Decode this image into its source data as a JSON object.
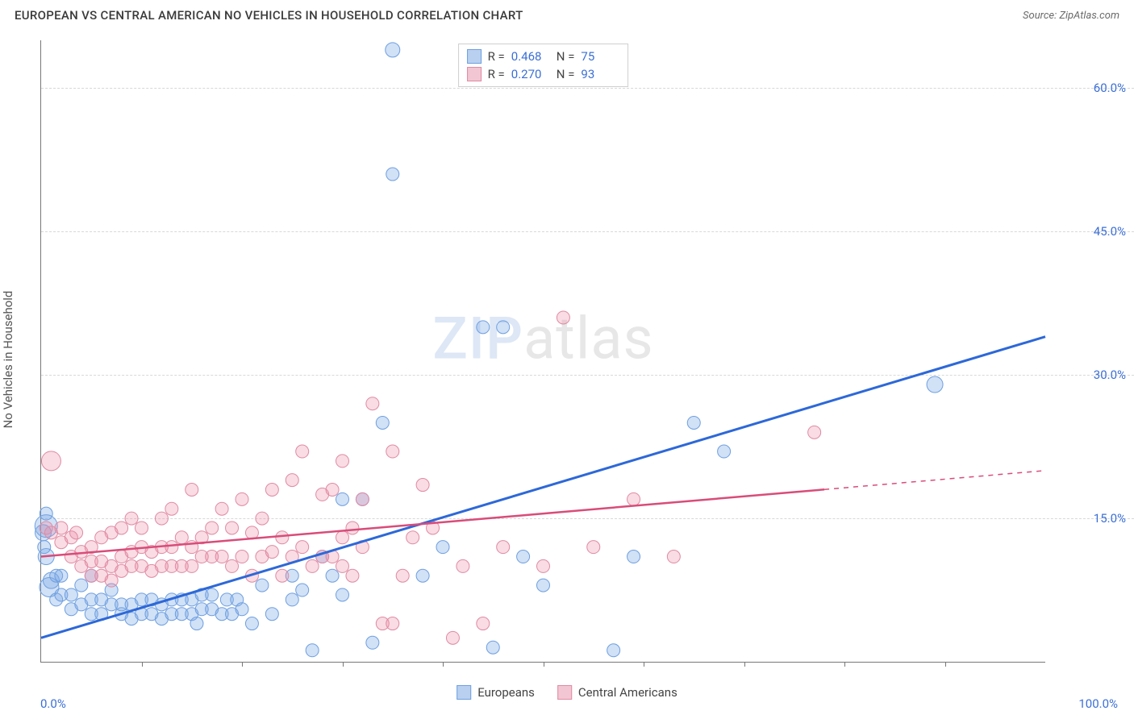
{
  "header": {
    "title": "EUROPEAN VS CENTRAL AMERICAN NO VEHICLES IN HOUSEHOLD CORRELATION CHART",
    "source_prefix": "Source: ",
    "source_name": "ZipAtlas.com"
  },
  "watermark": {
    "part1": "ZIP",
    "part2": "atlas"
  },
  "chart": {
    "type": "scatter-with-regression",
    "xlim": [
      0,
      100
    ],
    "ylim": [
      0,
      65
    ],
    "x_axis_label_left": "0.0%",
    "x_axis_label_right": "100.0%",
    "y_axis_title": "No Vehicles in Household",
    "y_ticks": [
      {
        "v": 15,
        "label": "15.0%"
      },
      {
        "v": 30,
        "label": "30.0%"
      },
      {
        "v": 45,
        "label": "45.0%"
      },
      {
        "v": 60,
        "label": "60.0%"
      }
    ],
    "x_tick_positions": [
      10,
      20,
      30,
      40,
      50,
      60,
      70,
      80,
      90
    ],
    "grid_color": "#d8d8d8",
    "axis_color": "#777777",
    "background_color": "#ffffff",
    "tick_label_color": "#3b6fd6",
    "series": [
      {
        "key": "europeans",
        "label": "Europeans",
        "color_fill": "rgba(122,168,228,0.35)",
        "color_stroke": "#6e9fe0",
        "line_color": "#2d68d8",
        "line_width": 3,
        "swatch_fill": "#b9d0f0",
        "swatch_stroke": "#6e9fe0",
        "marker_radius": 8,
        "stats": {
          "R": "0.468",
          "N": "75"
        },
        "regression": {
          "x1": 0,
          "y1": 2.5,
          "x2": 100,
          "y2": 34.0,
          "solid_until_x": 100
        },
        "points": [
          [
            0.5,
            14.2,
            14
          ],
          [
            0.5,
            11.0,
            10
          ],
          [
            0.8,
            7.8,
            12
          ],
          [
            1.0,
            8.5,
            10
          ],
          [
            1.5,
            6.5,
            8
          ],
          [
            1.5,
            9.0,
            8
          ],
          [
            0.2,
            13.5,
            10
          ],
          [
            0.5,
            15.5,
            8
          ],
          [
            0.3,
            12.0,
            8
          ],
          [
            2,
            7,
            8
          ],
          [
            2,
            9,
            8
          ],
          [
            3,
            5.5,
            8
          ],
          [
            3,
            7,
            8
          ],
          [
            4,
            6,
            8
          ],
          [
            4,
            8,
            8
          ],
          [
            5,
            5,
            8
          ],
          [
            5,
            6.5,
            8
          ],
          [
            5,
            9,
            8
          ],
          [
            6,
            5,
            8
          ],
          [
            6,
            6.5,
            8
          ],
          [
            7,
            6,
            8
          ],
          [
            7,
            7.5,
            8
          ],
          [
            8,
            5,
            8
          ],
          [
            8,
            6,
            8
          ],
          [
            9,
            4.5,
            8
          ],
          [
            9,
            6,
            8
          ],
          [
            10,
            5,
            8
          ],
          [
            10,
            6.5,
            8
          ],
          [
            11,
            5,
            8
          ],
          [
            11,
            6.5,
            8
          ],
          [
            12,
            4.5,
            8
          ],
          [
            12,
            6,
            8
          ],
          [
            13,
            5,
            8
          ],
          [
            13,
            6.5,
            8
          ],
          [
            14,
            5,
            8
          ],
          [
            14,
            6.5,
            8
          ],
          [
            15,
            5,
            8
          ],
          [
            15,
            6.5,
            8
          ],
          [
            15.5,
            4,
            8
          ],
          [
            16,
            5.5,
            8
          ],
          [
            16,
            7,
            8
          ],
          [
            17,
            5.5,
            8
          ],
          [
            17,
            7,
            8
          ],
          [
            18,
            5,
            8
          ],
          [
            18.5,
            6.5,
            8
          ],
          [
            19,
            5,
            8
          ],
          [
            19.5,
            6.5,
            8
          ],
          [
            20,
            5.5,
            8
          ],
          [
            21,
            4,
            8
          ],
          [
            22,
            8,
            8
          ],
          [
            23,
            5,
            8
          ],
          [
            25,
            6.5,
            8
          ],
          [
            25,
            9,
            8
          ],
          [
            26,
            7.5,
            8
          ],
          [
            27,
            1.2,
            8
          ],
          [
            28,
            11,
            8
          ],
          [
            29,
            9,
            8
          ],
          [
            30,
            7,
            8
          ],
          [
            30,
            17,
            8
          ],
          [
            32,
            17,
            8
          ],
          [
            33,
            2,
            8
          ],
          [
            34,
            25,
            8
          ],
          [
            35,
            51,
            8
          ],
          [
            35,
            64,
            9
          ],
          [
            38,
            9,
            8
          ],
          [
            40,
            12,
            8
          ],
          [
            44,
            35,
            8
          ],
          [
            45,
            1.5,
            8
          ],
          [
            46,
            35,
            8
          ],
          [
            48,
            11,
            8
          ],
          [
            50,
            8,
            8
          ],
          [
            57,
            1.2,
            8
          ],
          [
            59,
            11,
            8
          ],
          [
            65,
            25,
            8
          ],
          [
            68,
            22,
            8
          ],
          [
            89,
            29,
            10
          ]
        ]
      },
      {
        "key": "central_americans",
        "label": "Central Americans",
        "color_fill": "rgba(235,140,165,0.30)",
        "color_stroke": "#e08aa3",
        "line_color": "#d94c7a",
        "line_width": 2.5,
        "swatch_fill": "#f3c6d3",
        "swatch_stroke": "#e08aa3",
        "marker_radius": 8,
        "stats": {
          "R": "0.270",
          "N": "93"
        },
        "regression": {
          "x1": 0,
          "y1": 11.0,
          "x2": 100,
          "y2": 20.0,
          "solid_until_x": 78
        },
        "points": [
          [
            1,
            21,
            12
          ],
          [
            0.5,
            14,
            8
          ],
          [
            1,
            13.5,
            8
          ],
          [
            2,
            14,
            8
          ],
          [
            2,
            12.5,
            8
          ],
          [
            3,
            13,
            8
          ],
          [
            3,
            11,
            8
          ],
          [
            3.5,
            13.5,
            8
          ],
          [
            4,
            10,
            8
          ],
          [
            4,
            11.5,
            8
          ],
          [
            5,
            9,
            8
          ],
          [
            5,
            10.5,
            8
          ],
          [
            5,
            12,
            8
          ],
          [
            6,
            9,
            8
          ],
          [
            6,
            10.5,
            8
          ],
          [
            6,
            13,
            8
          ],
          [
            7,
            8.5,
            8
          ],
          [
            7,
            10,
            8
          ],
          [
            7,
            13.5,
            8
          ],
          [
            8,
            9.5,
            8
          ],
          [
            8,
            11,
            8
          ],
          [
            8,
            14,
            8
          ],
          [
            9,
            10,
            8
          ],
          [
            9,
            11.5,
            8
          ],
          [
            9,
            15,
            8
          ],
          [
            10,
            10,
            8
          ],
          [
            10,
            12,
            8
          ],
          [
            10,
            14,
            8
          ],
          [
            11,
            9.5,
            8
          ],
          [
            11,
            11.5,
            8
          ],
          [
            12,
            10,
            8
          ],
          [
            12,
            12,
            8
          ],
          [
            12,
            15,
            8
          ],
          [
            13,
            10,
            8
          ],
          [
            13,
            12,
            8
          ],
          [
            13,
            16,
            8
          ],
          [
            14,
            10,
            8
          ],
          [
            14,
            13,
            8
          ],
          [
            15,
            10,
            8
          ],
          [
            15,
            12,
            8
          ],
          [
            15,
            18,
            8
          ],
          [
            16,
            11,
            8
          ],
          [
            16,
            13,
            8
          ],
          [
            17,
            11,
            8
          ],
          [
            17,
            14,
            8
          ],
          [
            18,
            11,
            8
          ],
          [
            18,
            16,
            8
          ],
          [
            19,
            10,
            8
          ],
          [
            19,
            14,
            8
          ],
          [
            20,
            11,
            8
          ],
          [
            20,
            17,
            8
          ],
          [
            21,
            9,
            8
          ],
          [
            21,
            13.5,
            8
          ],
          [
            22,
            11,
            8
          ],
          [
            22,
            15,
            8
          ],
          [
            23,
            11.5,
            8
          ],
          [
            23,
            18,
            8
          ],
          [
            24,
            9,
            8
          ],
          [
            24,
            13,
            8
          ],
          [
            25,
            11,
            8
          ],
          [
            25,
            19,
            8
          ],
          [
            26,
            12,
            8
          ],
          [
            26,
            22,
            8
          ],
          [
            27,
            10,
            8
          ],
          [
            28,
            11,
            8
          ],
          [
            28,
            17.5,
            8
          ],
          [
            29,
            11,
            8
          ],
          [
            29,
            18,
            8
          ],
          [
            30,
            10,
            8
          ],
          [
            30,
            13,
            8
          ],
          [
            30,
            21,
            8
          ],
          [
            31,
            9,
            8
          ],
          [
            31,
            14,
            8
          ],
          [
            32,
            12,
            8
          ],
          [
            32,
            17,
            8
          ],
          [
            33,
            27,
            8
          ],
          [
            34,
            4,
            8
          ],
          [
            35,
            4,
            8
          ],
          [
            35,
            22,
            8
          ],
          [
            36,
            9,
            8
          ],
          [
            37,
            13,
            8
          ],
          [
            38,
            18.5,
            8
          ],
          [
            39,
            14,
            8
          ],
          [
            41,
            2.5,
            8
          ],
          [
            42,
            10,
            8
          ],
          [
            44,
            4,
            8
          ],
          [
            46,
            12,
            8
          ],
          [
            50,
            10,
            8
          ],
          [
            52,
            36,
            8
          ],
          [
            55,
            12,
            8
          ],
          [
            59,
            17,
            8
          ],
          [
            63,
            11,
            8
          ],
          [
            77,
            24,
            8
          ]
        ]
      }
    ],
    "stats_legend": {
      "r_label": "R =",
      "n_label": "N ="
    },
    "bottom_legend_labels": [
      "Europeans",
      "Central Americans"
    ]
  }
}
